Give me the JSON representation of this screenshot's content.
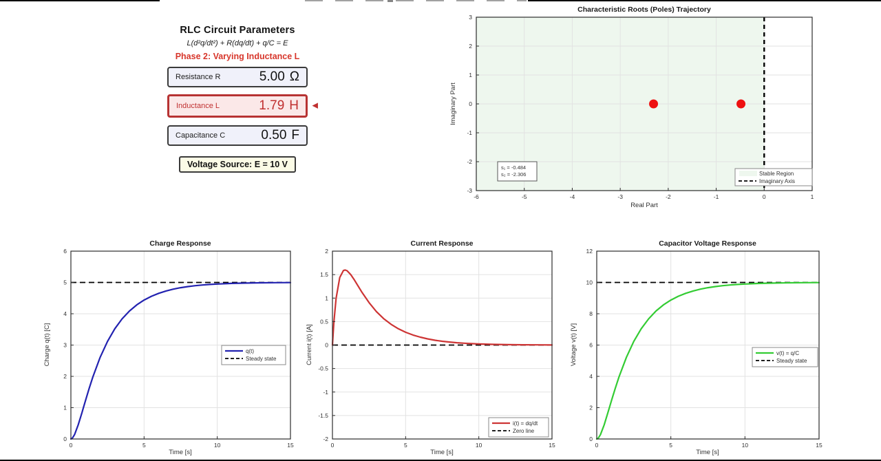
{
  "panel": {
    "title": "RLC Circuit Parameters",
    "equation": "L(d²q/dt²) + R(dq/dt) + q/C = E",
    "phase": "Phase 2: Varying Inductance L",
    "rows": [
      {
        "label": "Resistance R",
        "value": "5.00",
        "unit": "Ω"
      },
      {
        "label": "Inductance L",
        "value": "1.79",
        "unit": "H"
      },
      {
        "label": "Capacitance C",
        "value": "0.50",
        "unit": "F"
      }
    ],
    "voltage_source": "Voltage Source: E = 10 V"
  },
  "icons": {
    "selection_arrow": "◀"
  },
  "colors": {
    "highlight_red": "#c03030",
    "phase_red": "#d7362b",
    "charge_blue": "#2222b0",
    "current_red": "#cd3434",
    "voltage_green": "#33cc33",
    "pole_red": "#ee1111",
    "stable_region_green": "#eef7ee"
  },
  "chart_data": [
    {
      "id": "poles",
      "type": "scatter",
      "title": "Characteristic Roots (Poles) Trajectory",
      "xlabel": "Real Part",
      "ylabel": "Imaginary Part",
      "xlim": [
        -6,
        1
      ],
      "ylim": [
        -3,
        3
      ],
      "xticks": [
        -6,
        -5,
        -4,
        -3,
        -2,
        -1,
        0,
        1
      ],
      "yticks": [
        -3,
        -2,
        -1,
        0,
        1,
        2,
        3
      ],
      "grid": true,
      "regions": [
        {
          "name": "stable-region",
          "x0": -6,
          "x1": 0,
          "color": "#eef7ee"
        }
      ],
      "vlines": [
        {
          "x": 0,
          "style": "dashed",
          "color": "#000000",
          "name": "imaginary-axis-line"
        }
      ],
      "points": [
        {
          "x": -2.306,
          "y": 0
        },
        {
          "x": -0.484,
          "y": 0
        }
      ],
      "point_color": "#ee1111",
      "annotation": {
        "lines": [
          "s₁ = -0.484",
          "s₂ = -2.306"
        ]
      },
      "legend": {
        "position": "bottom-right",
        "entries": [
          {
            "label": "Stable Region",
            "swatch": "patch",
            "color": "#eef7ee"
          },
          {
            "label": "Imaginary Axis",
            "swatch": "dashed",
            "color": "#000000"
          }
        ]
      }
    },
    {
      "id": "charge",
      "type": "line",
      "title": "Charge Response",
      "xlabel": "Time [s]",
      "ylabel": "Charge q(t) [C]",
      "xlim": [
        0,
        15
      ],
      "ylim": [
        0,
        6
      ],
      "xticks": [
        0,
        5,
        10,
        15
      ],
      "yticks": [
        0,
        1,
        2,
        3,
        4,
        5,
        6
      ],
      "grid": true,
      "hlines": [
        {
          "y": 5,
          "style": "dashed",
          "color": "#000000",
          "name": "steady-state-line"
        }
      ],
      "series": [
        {
          "name": "q(t)",
          "color": "#2222b0",
          "x": [
            0,
            0.1,
            0.25,
            0.5,
            0.75,
            0.86,
            1,
            1.25,
            1.5,
            2,
            2.5,
            3,
            3.5,
            4,
            4.5,
            5,
            5.5,
            6,
            6.5,
            7,
            7.5,
            8,
            8.5,
            9,
            9.5,
            10,
            11,
            12,
            13,
            14,
            15
          ],
          "y": [
            0,
            0.026,
            0.139,
            0.451,
            0.834,
            1.009,
            1.232,
            1.619,
            1.98,
            2.609,
            3.117,
            3.52,
            3.837,
            4.087,
            4.283,
            4.437,
            4.558,
            4.653,
            4.728,
            4.786,
            4.832,
            4.868,
            4.897,
            4.919,
            4.936,
            4.95,
            4.969,
            4.981,
            4.988,
            4.993,
            4.996
          ]
        }
      ],
      "legend": {
        "position": "mid-right",
        "entries": [
          {
            "label": "q(t)",
            "swatch": "solid",
            "color": "#2222b0"
          },
          {
            "label": "Steady state",
            "swatch": "dashed",
            "color": "#000000"
          }
        ]
      }
    },
    {
      "id": "current",
      "type": "line",
      "title": "Current Response",
      "xlabel": "Time [s]",
      "ylabel": "Current i(t) [A]",
      "xlim": [
        0,
        15
      ],
      "ylim": [
        -2,
        2
      ],
      "xticks": [
        0,
        5,
        10,
        15
      ],
      "yticks": [
        -2,
        -1.5,
        -1,
        -0.5,
        0,
        0.5,
        1,
        1.5,
        2
      ],
      "grid": true,
      "hlines": [
        {
          "y": 0,
          "style": "dashed",
          "color": "#000000",
          "name": "zero-line"
        }
      ],
      "series": [
        {
          "name": "i(t) = dq/dt",
          "color": "#cd3434",
          "x": [
            0,
            0.1,
            0.25,
            0.5,
            0.75,
            0.86,
            1,
            1.25,
            1.5,
            2,
            2.5,
            3,
            3.5,
            4,
            4.5,
            5,
            5.5,
            6,
            6.5,
            7,
            7.5,
            8,
            8.5,
            9,
            9.5,
            10,
            11,
            12,
            13,
            14,
            15
          ],
          "y": [
            0,
            0.486,
            0.993,
            1.438,
            1.587,
            1.599,
            1.582,
            1.501,
            1.386,
            1.133,
            0.904,
            0.714,
            0.562,
            0.442,
            0.347,
            0.272,
            0.214,
            0.168,
            0.132,
            0.103,
            0.081,
            0.064,
            0.05,
            0.039,
            0.031,
            0.024,
            0.015,
            0.009,
            0.006,
            0.004,
            0.002
          ]
        }
      ],
      "legend": {
        "position": "bottom-right",
        "entries": [
          {
            "label": "i(t) = dq/dt",
            "swatch": "solid",
            "color": "#cd3434"
          },
          {
            "label": "Zero line",
            "swatch": "dashed",
            "color": "#000000"
          }
        ]
      }
    },
    {
      "id": "voltage",
      "type": "line",
      "title": "Capacitor Voltage Response",
      "xlabel": "Time [s]",
      "ylabel": "Voltage v(t) [V]",
      "xlim": [
        0,
        15
      ],
      "ylim": [
        0,
        12
      ],
      "xticks": [
        0,
        5,
        10,
        15
      ],
      "yticks": [
        0,
        2,
        4,
        6,
        8,
        10,
        12
      ],
      "grid": true,
      "hlines": [
        {
          "y": 10,
          "style": "dashed",
          "color": "#000000",
          "name": "steady-state-line"
        }
      ],
      "series": [
        {
          "name": "v(t) = q/C",
          "color": "#33cc33",
          "x": [
            0,
            0.1,
            0.25,
            0.5,
            0.75,
            0.86,
            1,
            1.25,
            1.5,
            2,
            2.5,
            3,
            3.5,
            4,
            4.5,
            5,
            5.5,
            6,
            6.5,
            7,
            7.5,
            8,
            8.5,
            9,
            9.5,
            10,
            11,
            12,
            13,
            14,
            15
          ],
          "y": [
            0,
            0.051,
            0.279,
            0.903,
            1.668,
            2.018,
            2.464,
            3.237,
            3.96,
            5.219,
            6.234,
            7.04,
            7.675,
            8.174,
            8.567,
            8.875,
            9.117,
            9.306,
            9.456,
            9.573,
            9.664,
            9.737,
            9.793,
            9.838,
            9.873,
            9.9,
            9.938,
            9.962,
            9.977,
            9.986,
            9.991
          ]
        }
      ],
      "legend": {
        "position": "mid-right",
        "entries": [
          {
            "label": "v(t) = q/C",
            "swatch": "solid",
            "color": "#33cc33"
          },
          {
            "label": "Steady state",
            "swatch": "dashed",
            "color": "#000000"
          }
        ]
      }
    }
  ]
}
